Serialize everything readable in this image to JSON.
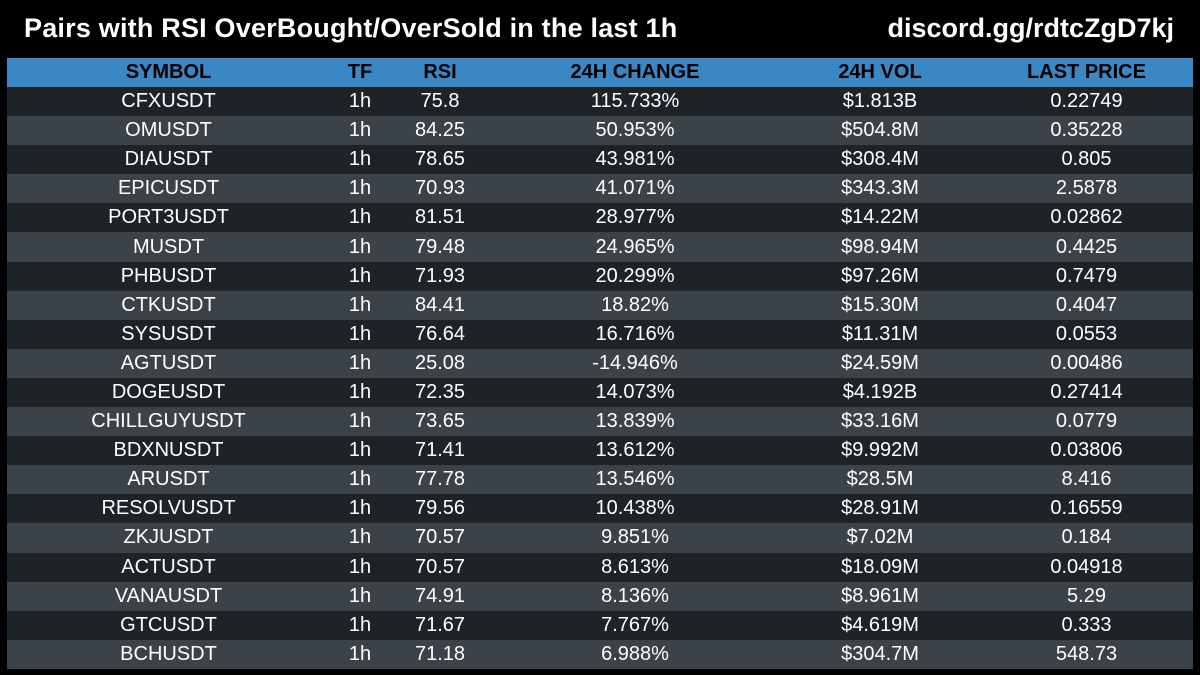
{
  "header": {
    "title": "Pairs with RSI OverBought/OverSold in the last 1h",
    "discord": "discord.gg/rdtcZgD7kj"
  },
  "colors": {
    "background": "#000000",
    "header_row": "#3a87c4",
    "row_dark": "#1e2327",
    "row_light": "#3b4248"
  },
  "table": {
    "columns": [
      "SYMBOL",
      "TF",
      "RSI",
      "24H CHANGE",
      "24H VOL",
      "LAST PRICE"
    ],
    "rows": [
      [
        "CFXUSDT",
        "1h",
        "75.8",
        "115.733%",
        "$1.813B",
        "0.22749"
      ],
      [
        "OMUSDT",
        "1h",
        "84.25",
        "50.953%",
        "$504.8M",
        "0.35228"
      ],
      [
        "DIAUSDT",
        "1h",
        "78.65",
        "43.981%",
        "$308.4M",
        "0.805"
      ],
      [
        "EPICUSDT",
        "1h",
        "70.93",
        "41.071%",
        "$343.3M",
        "2.5878"
      ],
      [
        "PORT3USDT",
        "1h",
        "81.51",
        "28.977%",
        "$14.22M",
        "0.02862"
      ],
      [
        "MUSDT",
        "1h",
        "79.48",
        "24.965%",
        "$98.94M",
        "0.4425"
      ],
      [
        "PHBUSDT",
        "1h",
        "71.93",
        "20.299%",
        "$97.26M",
        "0.7479"
      ],
      [
        "CTKUSDT",
        "1h",
        "84.41",
        "18.82%",
        "$15.30M",
        "0.4047"
      ],
      [
        "SYSUSDT",
        "1h",
        "76.64",
        "16.716%",
        "$11.31M",
        "0.0553"
      ],
      [
        "AGTUSDT",
        "1h",
        "25.08",
        "-14.946%",
        "$24.59M",
        "0.00486"
      ],
      [
        "DOGEUSDT",
        "1h",
        "72.35",
        "14.073%",
        "$4.192B",
        "0.27414"
      ],
      [
        "CHILLGUYUSDT",
        "1h",
        "73.65",
        "13.839%",
        "$33.16M",
        "0.0779"
      ],
      [
        "BDXNUSDT",
        "1h",
        "71.41",
        "13.612%",
        "$9.992M",
        "0.03806"
      ],
      [
        "ARUSDT",
        "1h",
        "77.78",
        "13.546%",
        "$28.5M",
        "8.416"
      ],
      [
        "RESOLVUSDT",
        "1h",
        "79.56",
        "10.438%",
        "$28.91M",
        "0.16559"
      ],
      [
        "ZKJUSDT",
        "1h",
        "70.57",
        "9.851%",
        "$7.02M",
        "0.184"
      ],
      [
        "ACTUSDT",
        "1h",
        "70.57",
        "8.613%",
        "$18.09M",
        "0.04918"
      ],
      [
        "VANAUSDT",
        "1h",
        "74.91",
        "8.136%",
        "$8.961M",
        "5.29"
      ],
      [
        "GTCUSDT",
        "1h",
        "71.67",
        "7.767%",
        "$4.619M",
        "0.333"
      ],
      [
        "BCHUSDT",
        "1h",
        "71.18",
        "6.988%",
        "$304.7M",
        "548.73"
      ]
    ]
  }
}
